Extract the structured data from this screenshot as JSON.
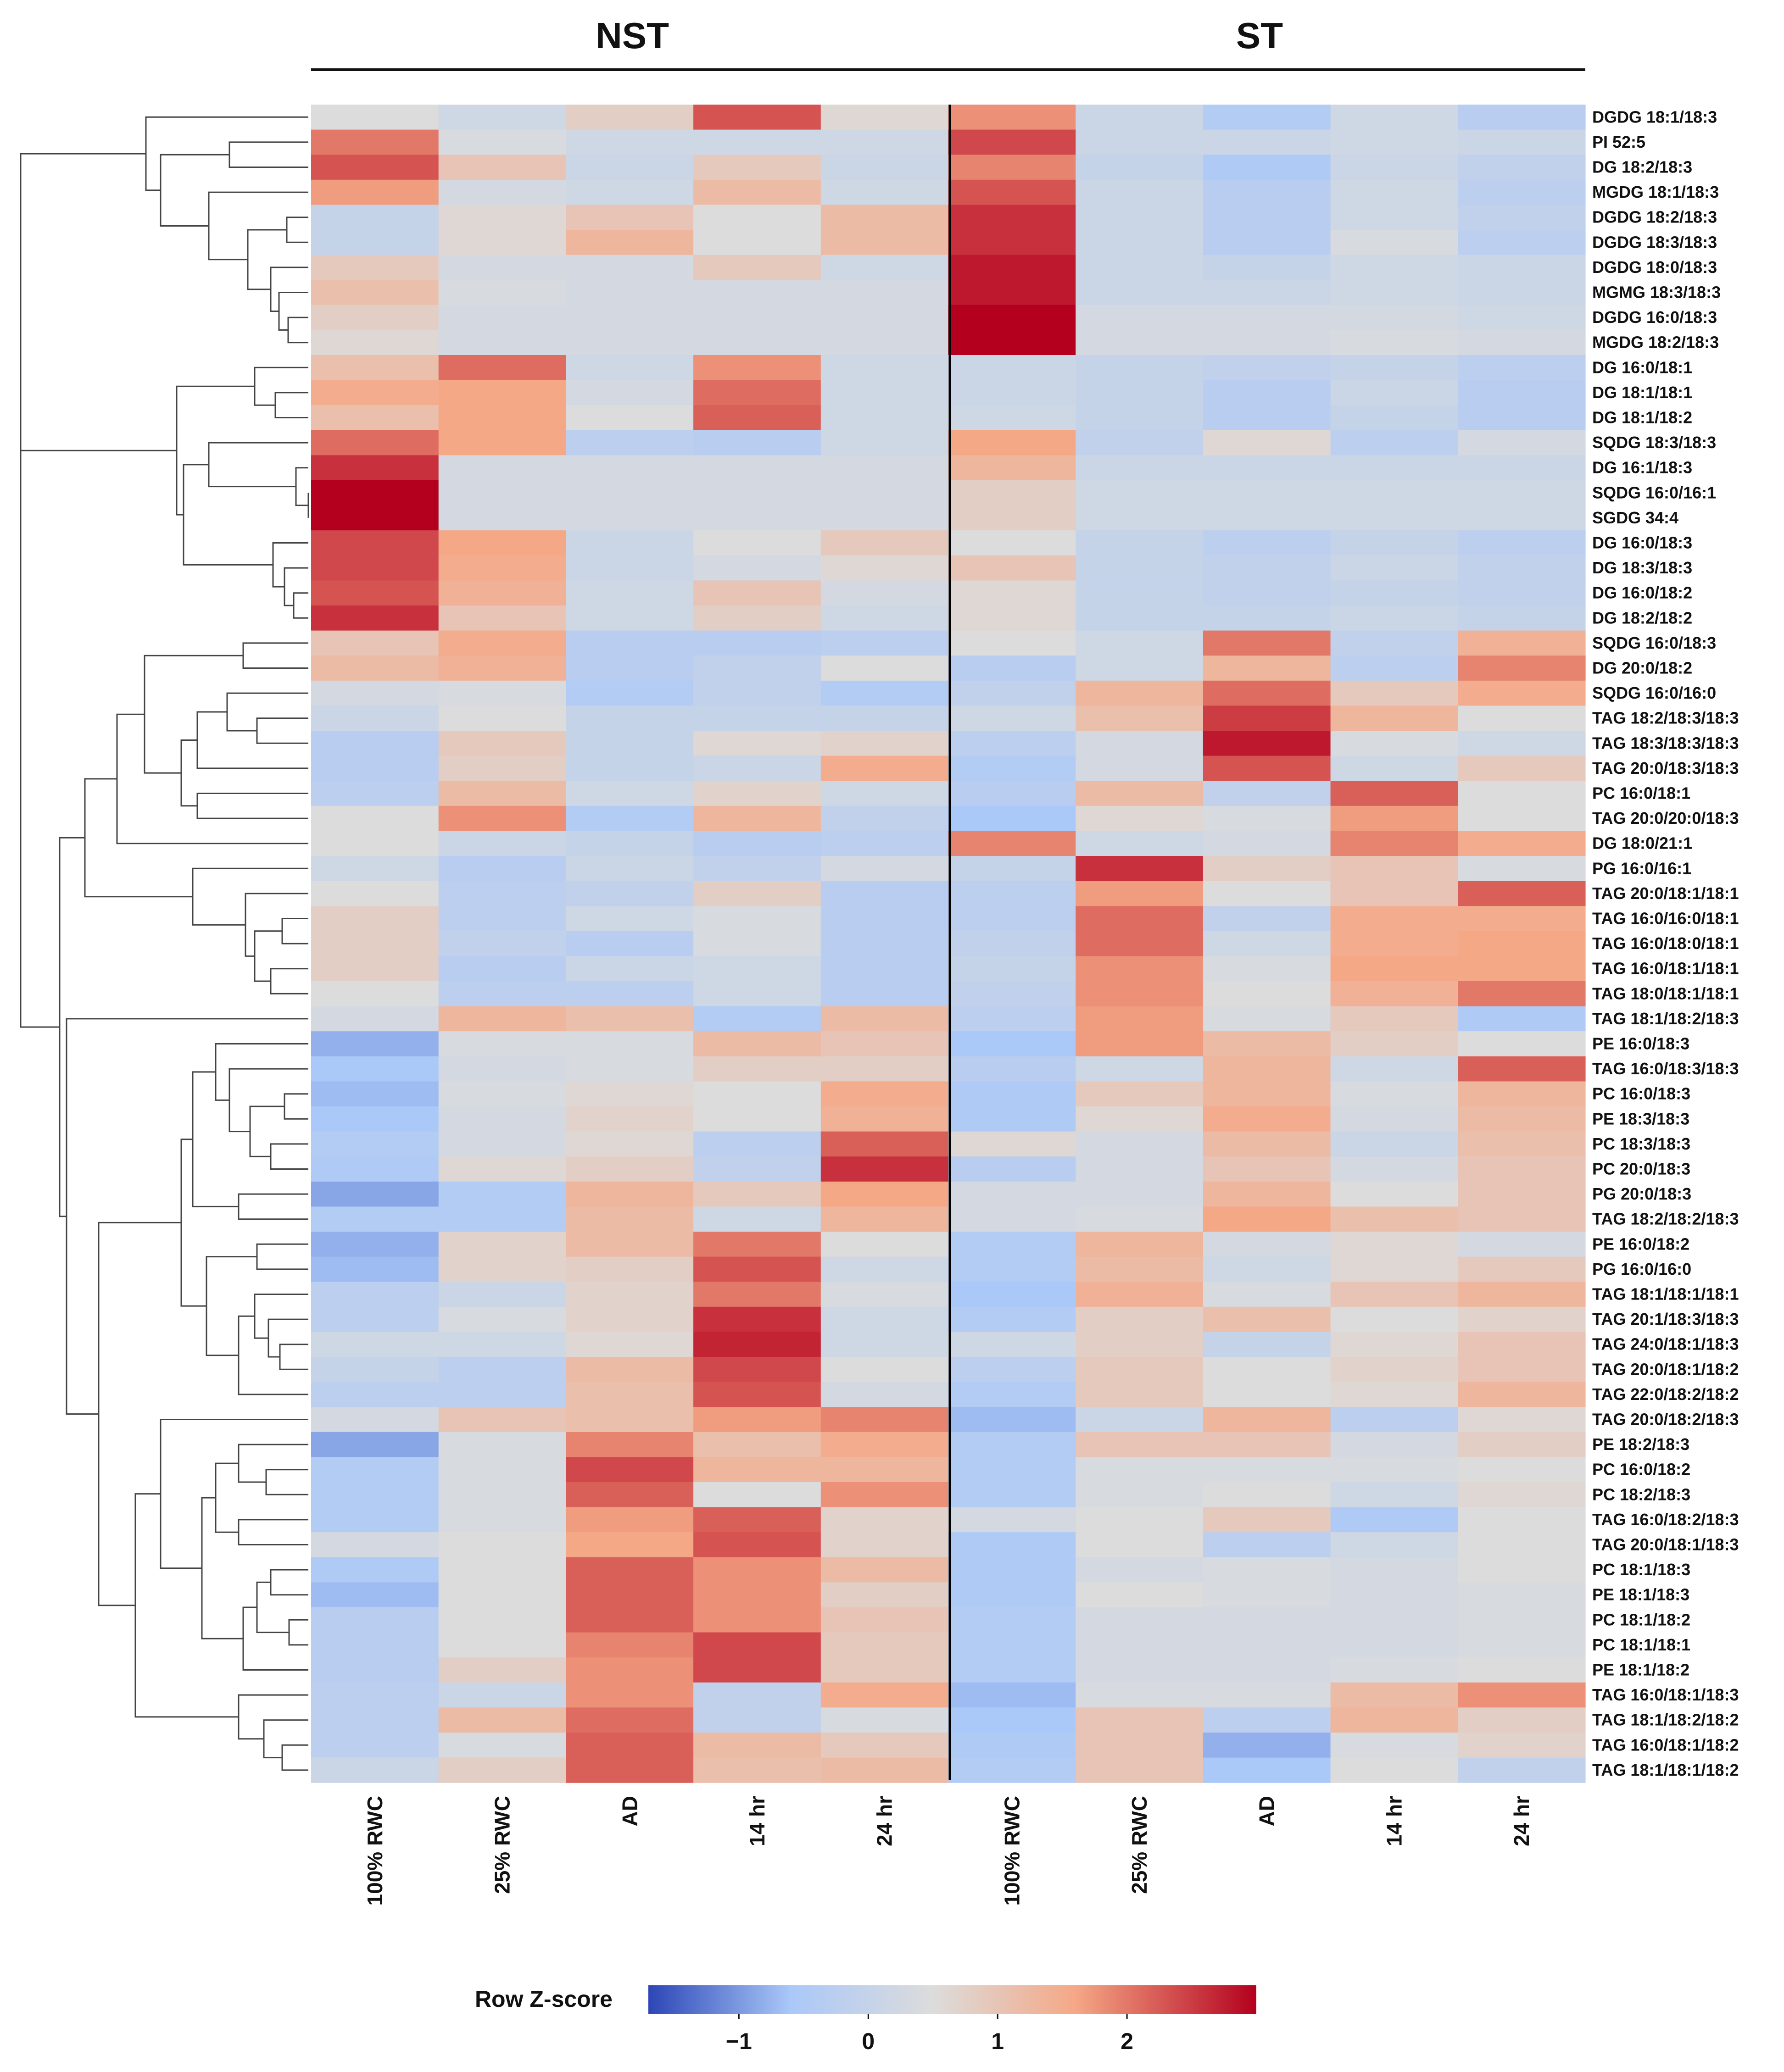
{
  "chart_data": {
    "type": "heatmap",
    "group_titles": [
      "NST",
      "ST"
    ],
    "columns": [
      {
        "group": "NST",
        "label": "100% RWC"
      },
      {
        "group": "NST",
        "label": "25% RWC"
      },
      {
        "group": "NST",
        "label": "AD"
      },
      {
        "group": "NST",
        "label": "14 hr"
      },
      {
        "group": "NST",
        "label": "24 hr"
      },
      {
        "group": "ST",
        "label": "100% RWC"
      },
      {
        "group": "ST",
        "label": "25% RWC"
      },
      {
        "group": "ST",
        "label": "AD"
      },
      {
        "group": "ST",
        "label": "14 hr"
      },
      {
        "group": "ST",
        "label": "24 hr"
      }
    ],
    "rows": [
      {
        "label": "DGDG 18:1/18:3",
        "values": [
          0.5,
          0.2,
          0.8,
          2.3,
          0.6,
          1.8,
          0.1,
          -0.4,
          0.2,
          -0.3
        ]
      },
      {
        "label": "PI 52:5",
        "values": [
          2.0,
          0.4,
          0.2,
          0.2,
          0.2,
          2.4,
          0.1,
          0.1,
          0.2,
          0.1
        ]
      },
      {
        "label": "DG 18:2/18:3",
        "values": [
          2.3,
          1.0,
          0.1,
          0.9,
          0.1,
          1.9,
          0.0,
          -0.5,
          0.1,
          -0.1
        ]
      },
      {
        "label": "MGDG 18:1/18:3",
        "values": [
          1.7,
          0.3,
          0.2,
          1.2,
          0.2,
          2.3,
          0.1,
          -0.3,
          0.2,
          -0.2
        ]
      },
      {
        "label": "DGDG 18:2/18:3",
        "values": [
          0.0,
          0.6,
          1.0,
          0.5,
          1.2,
          2.6,
          0.1,
          -0.3,
          0.2,
          -0.1
        ]
      },
      {
        "label": "DGDG 18:3/18:3",
        "values": [
          0.0,
          0.6,
          1.3,
          0.5,
          1.2,
          2.6,
          0.1,
          -0.3,
          0.4,
          -0.2
        ]
      },
      {
        "label": "DGDG 18:0/18:3",
        "values": [
          0.9,
          0.3,
          0.3,
          0.9,
          0.2,
          2.8,
          0.1,
          0.0,
          0.2,
          0.1
        ]
      },
      {
        "label": "MGMG 18:3/18:3",
        "values": [
          1.1,
          0.4,
          0.3,
          0.3,
          0.3,
          2.8,
          0.1,
          0.1,
          0.2,
          0.1
        ]
      },
      {
        "label": "DGDG 16:0/18:3",
        "values": [
          0.8,
          0.3,
          0.3,
          0.3,
          0.3,
          3.0,
          0.3,
          0.3,
          0.3,
          0.2
        ]
      },
      {
        "label": "MGDG 18:2/18:3",
        "values": [
          0.6,
          0.3,
          0.3,
          0.3,
          0.3,
          3.0,
          0.3,
          0.3,
          0.4,
          0.3
        ]
      },
      {
        "label": "DG 16:0/18:1",
        "values": [
          1.1,
          2.1,
          0.2,
          1.8,
          0.2,
          0.1,
          0.0,
          -0.1,
          0.0,
          -0.2
        ]
      },
      {
        "label": "DG 18:1/18:1",
        "values": [
          1.5,
          1.6,
          0.3,
          2.1,
          0.2,
          0.1,
          0.0,
          -0.3,
          0.1,
          -0.3
        ]
      },
      {
        "label": "DG 18:1/18:2",
        "values": [
          1.1,
          1.6,
          0.5,
          2.2,
          0.2,
          0.2,
          0.0,
          -0.3,
          0.0,
          -0.3
        ]
      },
      {
        "label": "SQDG 18:3/18:3",
        "values": [
          2.1,
          1.6,
          -0.2,
          -0.3,
          0.2,
          1.6,
          -0.1,
          0.6,
          -0.2,
          0.3
        ]
      },
      {
        "label": "DG 16:1/18:3",
        "values": [
          2.6,
          0.3,
          0.3,
          0.3,
          0.3,
          1.3,
          0.1,
          0.1,
          0.1,
          0.1
        ]
      },
      {
        "label": "SQDG 16:0/16:1",
        "values": [
          3.0,
          0.3,
          0.3,
          0.3,
          0.3,
          0.8,
          0.2,
          0.2,
          0.2,
          0.2
        ]
      },
      {
        "label": "SGDG 34:4",
        "values": [
          3.0,
          0.3,
          0.3,
          0.3,
          0.3,
          0.8,
          0.2,
          0.2,
          0.2,
          0.2
        ]
      },
      {
        "label": "DG 16:0/18:3",
        "values": [
          2.4,
          1.6,
          0.1,
          0.5,
          0.9,
          0.5,
          0.0,
          -0.2,
          0.0,
          -0.2
        ]
      },
      {
        "label": "DG 18:3/18:3",
        "values": [
          2.4,
          1.5,
          0.1,
          0.3,
          0.6,
          1.0,
          0.0,
          -0.1,
          0.1,
          -0.1
        ]
      },
      {
        "label": "DG 16:0/18:2",
        "values": [
          2.3,
          1.4,
          0.2,
          1.0,
          0.3,
          0.6,
          0.0,
          -0.1,
          0.0,
          -0.1
        ]
      },
      {
        "label": "DG 18:2/18:2",
        "values": [
          2.6,
          1.0,
          0.2,
          0.8,
          0.2,
          0.6,
          0.0,
          0.0,
          0.1,
          0.0
        ]
      },
      {
        "label": "SQDG 16:0/18:3",
        "values": [
          1.0,
          1.5,
          -0.3,
          -0.3,
          -0.2,
          0.5,
          0.2,
          2.0,
          -0.1,
          1.4
        ]
      },
      {
        "label": "DG 20:0/18:2",
        "values": [
          1.2,
          1.4,
          -0.3,
          -0.1,
          0.5,
          -0.3,
          0.2,
          1.3,
          -0.2,
          1.9
        ]
      },
      {
        "label": "SQDG 16:0/16:0",
        "values": [
          0.3,
          0.4,
          -0.4,
          -0.1,
          -0.4,
          -0.1,
          1.3,
          2.1,
          0.9,
          1.5
        ]
      },
      {
        "label": "TAG 18:2/18:3/18:3",
        "values": [
          0.1,
          0.5,
          0.0,
          0.0,
          0.0,
          0.2,
          1.1,
          2.5,
          1.3,
          0.5
        ]
      },
      {
        "label": "TAG 18:3/18:3/18:3",
        "values": [
          -0.3,
          0.9,
          0.0,
          0.6,
          0.7,
          -0.2,
          0.3,
          2.8,
          0.4,
          0.2
        ]
      },
      {
        "label": "TAG 20:0/18:3/18:3",
        "values": [
          -0.3,
          0.8,
          0.0,
          0.1,
          1.5,
          -0.4,
          0.3,
          2.3,
          0.2,
          0.9
        ]
      },
      {
        "label": "PC 16:0/18:1",
        "values": [
          -0.2,
          1.2,
          0.2,
          0.7,
          0.2,
          -0.3,
          1.2,
          -0.1,
          2.2,
          0.5
        ]
      },
      {
        "label": "TAG 20:0/20:0/18:3",
        "values": [
          0.5,
          1.8,
          -0.4,
          1.3,
          -0.1,
          -0.6,
          0.6,
          0.4,
          1.7,
          0.5
        ]
      },
      {
        "label": "DG 18:0/21:1",
        "values": [
          0.5,
          0.1,
          0.0,
          -0.3,
          -0.2,
          1.9,
          0.2,
          0.3,
          1.9,
          1.5
        ]
      },
      {
        "label": "PG 16:0/16:1",
        "values": [
          0.2,
          -0.3,
          0.1,
          -0.1,
          0.3,
          0.0,
          2.6,
          0.8,
          1.0,
          0.4
        ]
      },
      {
        "label": "TAG 20:0/18:1/18:1",
        "values": [
          0.5,
          -0.2,
          -0.1,
          0.8,
          -0.3,
          -0.2,
          1.7,
          0.5,
          1.0,
          2.2
        ]
      },
      {
        "label": "TAG 16:0/16:0/18:1",
        "values": [
          0.8,
          -0.2,
          0.2,
          0.4,
          -0.3,
          -0.2,
          2.1,
          -0.1,
          1.5,
          1.5
        ]
      },
      {
        "label": "TAG 16:0/18:0/18:1",
        "values": [
          0.8,
          -0.1,
          -0.3,
          0.4,
          -0.3,
          -0.1,
          2.1,
          0.2,
          1.5,
          1.6
        ]
      },
      {
        "label": "TAG 16:0/18:1/18:1",
        "values": [
          0.8,
          -0.3,
          0.1,
          0.2,
          -0.3,
          0.0,
          1.8,
          0.4,
          1.6,
          1.6
        ]
      },
      {
        "label": "TAG 18:0/18:1/18:1",
        "values": [
          0.5,
          -0.2,
          -0.2,
          0.2,
          -0.3,
          -0.1,
          1.8,
          0.5,
          1.4,
          2.0
        ]
      },
      {
        "label": "TAG 18:1/18:2/18:3",
        "values": [
          0.3,
          1.3,
          1.1,
          -0.4,
          1.2,
          -0.2,
          1.7,
          0.4,
          0.9,
          -0.5
        ]
      },
      {
        "label": "PE 16:0/18:3",
        "values": [
          -0.8,
          0.4,
          0.4,
          1.2,
          1.0,
          -0.6,
          1.7,
          1.2,
          0.8,
          0.5
        ]
      },
      {
        "label": "TAG 16:0/18:3/18:3",
        "values": [
          -0.6,
          0.3,
          0.4,
          0.8,
          0.8,
          -0.3,
          0.2,
          1.3,
          0.2,
          2.2
        ]
      },
      {
        "label": "PC 16:0/18:3",
        "values": [
          -0.7,
          0.4,
          0.6,
          0.5,
          1.5,
          -0.5,
          0.9,
          1.3,
          0.4,
          1.3
        ]
      },
      {
        "label": "PE 18:3/18:3",
        "values": [
          -0.6,
          0.3,
          0.7,
          0.5,
          1.4,
          -0.5,
          0.6,
          1.5,
          0.3,
          1.2
        ]
      },
      {
        "label": "PC 18:3/18:3",
        "values": [
          -0.4,
          0.3,
          0.6,
          -0.2,
          2.2,
          0.6,
          0.3,
          1.2,
          0.1,
          1.1
        ]
      },
      {
        "label": "PC 20:0/18:3",
        "values": [
          -0.5,
          0.6,
          0.8,
          -0.1,
          2.6,
          -0.3,
          0.3,
          1.0,
          0.3,
          1.0
        ]
      },
      {
        "label": "PG 20:0/18:3",
        "values": [
          -0.9,
          -0.4,
          1.3,
          0.9,
          1.6,
          0.3,
          0.3,
          1.3,
          0.5,
          1.0
        ]
      },
      {
        "label": "TAG 18:2/18:2/18:3",
        "values": [
          -0.4,
          -0.4,
          1.2,
          0.2,
          1.3,
          0.3,
          0.4,
          1.6,
          1.1,
          1.0
        ]
      },
      {
        "label": "PE 16:0/18:2",
        "values": [
          -0.8,
          0.7,
          1.2,
          2.0,
          0.5,
          -0.4,
          1.3,
          0.3,
          0.6,
          0.3
        ]
      },
      {
        "label": "PG 16:0/16:0",
        "values": [
          -0.7,
          0.7,
          0.8,
          2.3,
          0.2,
          -0.4,
          1.2,
          0.2,
          0.6,
          0.9
        ]
      },
      {
        "label": "TAG 18:1/18:1/18:1",
        "values": [
          -0.2,
          0.1,
          0.7,
          2.0,
          0.4,
          -0.6,
          1.4,
          0.4,
          1.0,
          1.3
        ]
      },
      {
        "label": "TAG 20:1/18:3/18:3",
        "values": [
          -0.2,
          0.4,
          0.7,
          2.6,
          0.2,
          -0.4,
          0.8,
          1.1,
          0.5,
          0.7
        ]
      },
      {
        "label": "TAG 24:0/18:1/18:3",
        "values": [
          0.2,
          0.2,
          0.6,
          2.7,
          0.2,
          0.2,
          0.8,
          0.0,
          0.6,
          1.0
        ]
      },
      {
        "label": "TAG 20:0/18:1/18:2",
        "values": [
          0.0,
          -0.2,
          1.2,
          2.4,
          0.5,
          -0.2,
          0.9,
          0.5,
          0.7,
          1.0
        ]
      },
      {
        "label": "TAG 22:0/18:2/18:2",
        "values": [
          -0.2,
          -0.2,
          1.1,
          2.3,
          0.3,
          -0.4,
          0.9,
          0.5,
          0.6,
          1.3
        ]
      },
      {
        "label": "TAG 20:0/18:2/18:3",
        "values": [
          0.3,
          1.0,
          1.1,
          1.7,
          1.9,
          -0.7,
          0.1,
          1.3,
          -0.2,
          0.6
        ]
      },
      {
        "label": "PE 18:2/18:3",
        "values": [
          -0.9,
          0.4,
          1.9,
          1.1,
          1.5,
          -0.4,
          1.0,
          1.0,
          0.3,
          0.8
        ]
      },
      {
        "label": "PC 16:0/18:2",
        "values": [
          -0.4,
          0.4,
          2.4,
          1.3,
          1.3,
          -0.4,
          0.4,
          0.4,
          0.4,
          0.5
        ]
      },
      {
        "label": "PC 18:2/18:3",
        "values": [
          -0.4,
          0.4,
          2.2,
          0.5,
          1.8,
          -0.4,
          0.4,
          0.5,
          0.2,
          0.6
        ]
      },
      {
        "label": "TAG 16:0/18:2/18:3",
        "values": [
          -0.4,
          0.4,
          1.7,
          2.2,
          0.7,
          0.3,
          0.5,
          0.9,
          -0.5,
          0.5
        ]
      },
      {
        "label": "TAG 20:0/18:1/18:3",
        "values": [
          0.3,
          0.5,
          1.6,
          2.3,
          0.7,
          -0.5,
          0.5,
          -0.2,
          0.2,
          0.5
        ]
      },
      {
        "label": "PC 18:1/18:3",
        "values": [
          -0.5,
          0.5,
          2.2,
          1.8,
          1.2,
          -0.5,
          0.3,
          0.4,
          0.3,
          0.5
        ]
      },
      {
        "label": "PE 18:1/18:3",
        "values": [
          -0.7,
          0.5,
          2.2,
          1.8,
          0.8,
          -0.5,
          0.5,
          0.4,
          0.3,
          0.4
        ]
      },
      {
        "label": "PC 18:1/18:2",
        "values": [
          -0.3,
          0.5,
          2.2,
          1.8,
          1.0,
          -0.4,
          0.3,
          0.3,
          0.3,
          0.4
        ]
      },
      {
        "label": "PC 18:1/18:1",
        "values": [
          -0.3,
          0.5,
          1.9,
          2.4,
          0.9,
          -0.4,
          0.3,
          0.3,
          0.3,
          0.4
        ]
      },
      {
        "label": "PE 18:1/18:2",
        "values": [
          -0.3,
          0.8,
          1.8,
          2.4,
          0.9,
          -0.4,
          0.3,
          0.3,
          0.4,
          0.5
        ]
      },
      {
        "label": "TAG 16:0/18:1/18:3",
        "values": [
          -0.2,
          0.1,
          1.8,
          -0.1,
          1.5,
          -0.7,
          0.4,
          0.4,
          1.2,
          1.8
        ]
      },
      {
        "label": "TAG 18:1/18:2/18:2",
        "values": [
          -0.2,
          1.2,
          2.1,
          -0.1,
          0.4,
          -0.6,
          1.0,
          -0.2,
          1.3,
          0.8
        ]
      },
      {
        "label": "TAG 16:0/18:1/18:2",
        "values": [
          -0.2,
          0.4,
          2.2,
          1.2,
          0.9,
          -0.5,
          1.0,
          -0.8,
          0.4,
          0.7
        ]
      },
      {
        "label": "TAG 18:1/18:1/18:2",
        "values": [
          0.1,
          0.8,
          2.2,
          1.1,
          1.2,
          -0.4,
          1.0,
          -0.6,
          0.5,
          -0.1
        ]
      }
    ],
    "legend": {
      "title": "Row Z-score",
      "range": [
        -1.7,
        3.0
      ],
      "ticks": [
        {
          "value": -1,
          "label": "−1"
        },
        {
          "value": 0,
          "label": "0"
        },
        {
          "value": 1,
          "label": "1"
        },
        {
          "value": 2,
          "label": "2"
        }
      ],
      "colors": {
        "low": "#2c46b6",
        "mid_low": "#aac8f8",
        "mid": "#dcdcdc",
        "mid_high": "#f5a886",
        "high": "#b4001e"
      }
    },
    "dendrogram": "row-clustering"
  }
}
